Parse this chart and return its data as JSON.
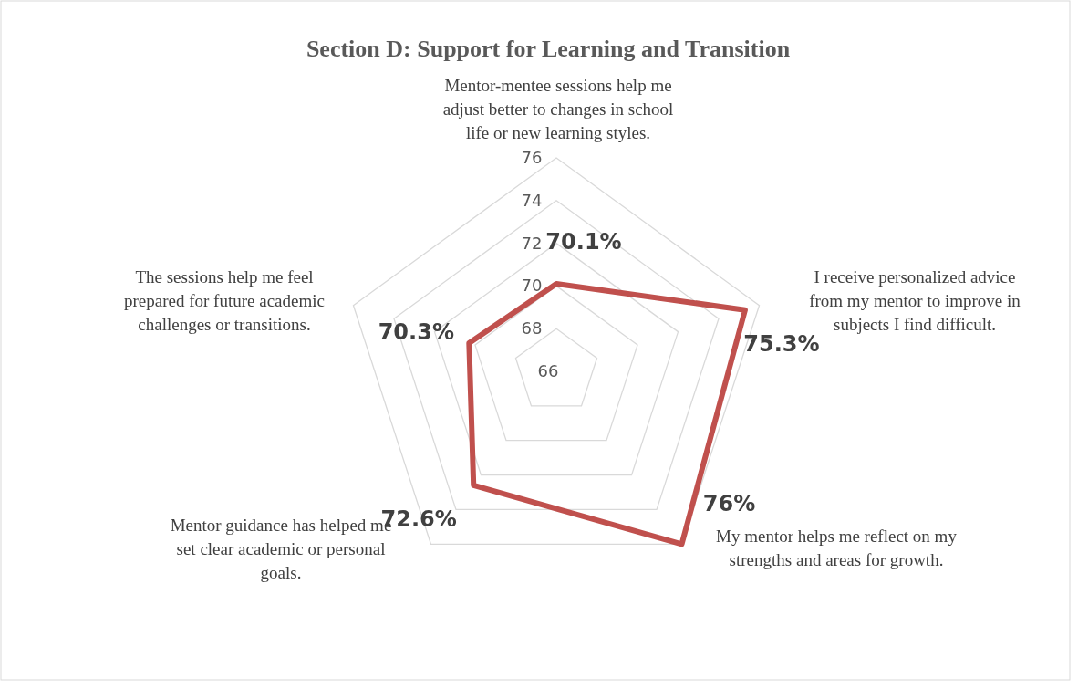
{
  "chart_data": {
    "type": "radar",
    "title": "Section D: Support for Learning and Transition",
    "categories": [
      "Mentor-mentee sessions help me adjust better to changes in school life or new learning styles.",
      "I receive personalized advice from my mentor to improve in subjects I find difficult.",
      "My mentor helps me reflect on my strengths and areas for growth.",
      "Mentor guidance has helped me set clear academic or personal goals.",
      "The sessions help me feel prepared for future academic challenges or transitions."
    ],
    "series": [
      {
        "color": "#c0504d",
        "values": [
          70.1,
          75.3,
          76,
          72.6,
          70.3
        ]
      }
    ],
    "value_labels": [
      "70.1%",
      "75.3%",
      "76%",
      "72.6%",
      "70.3%"
    ],
    "ylim": [
      66,
      76
    ],
    "yticks": [
      66,
      68,
      70,
      72,
      74,
      76
    ],
    "grid": true,
    "marker": "none"
  }
}
